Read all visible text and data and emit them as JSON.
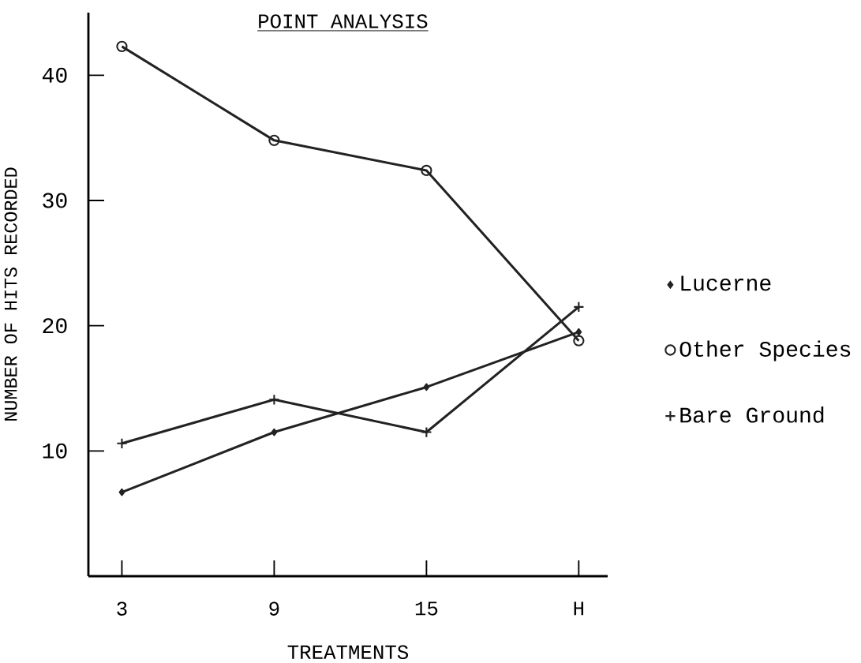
{
  "chart_data": {
    "type": "line",
    "title": "POINT ANALYSIS",
    "xlabel": "TREATMENTS",
    "ylabel": "NUMBER OF HITS RECORDED",
    "categories": [
      "3",
      "9",
      "15",
      "H"
    ],
    "series": [
      {
        "name": "Lucerne",
        "color": "#222222",
        "marker": "diamond",
        "values": [
          6.7,
          11.5,
          15.1,
          19.5
        ]
      },
      {
        "name": "Other Species",
        "color": "#222222",
        "marker": "circle",
        "values": [
          42.3,
          34.8,
          32.4,
          18.8
        ]
      },
      {
        "name": "Bare Ground",
        "color": "#222222",
        "marker": "cross",
        "values": [
          10.6,
          14.1,
          11.5,
          21.5
        ]
      }
    ],
    "ylim": [
      0,
      45
    ],
    "yticks": [
      10,
      20,
      30,
      40
    ],
    "grid": false,
    "legend": "right"
  }
}
